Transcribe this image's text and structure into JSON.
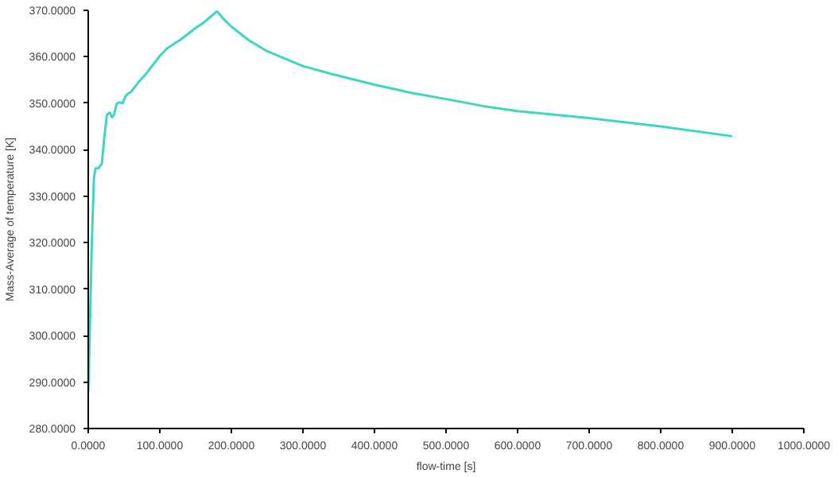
{
  "chart_data": {
    "type": "line",
    "xlabel": "flow-time [s]",
    "ylabel": "Mass-Average of temperature [K]",
    "xlim": [
      0,
      1000
    ],
    "ylim": [
      280,
      370
    ],
    "xticks": [
      {
        "value": 0,
        "label": "0.0000"
      },
      {
        "value": 100,
        "label": "100.0000"
      },
      {
        "value": 200,
        "label": "200.0000"
      },
      {
        "value": 300,
        "label": "300.0000"
      },
      {
        "value": 400,
        "label": "400.0000"
      },
      {
        "value": 500,
        "label": "500.0000"
      },
      {
        "value": 600,
        "label": "600.0000"
      },
      {
        "value": 700,
        "label": "700.0000"
      },
      {
        "value": 800,
        "label": "800.0000"
      },
      {
        "value": 900,
        "label": "900.0000"
      },
      {
        "value": 1000,
        "label": "1000.0000"
      }
    ],
    "yticks": [
      {
        "value": 280,
        "label": "280.0000"
      },
      {
        "value": 290,
        "label": "290.0000"
      },
      {
        "value": 300,
        "label": "300.0000"
      },
      {
        "value": 310,
        "label": "310.0000"
      },
      {
        "value": 320,
        "label": "320.0000"
      },
      {
        "value": 330,
        "label": "330.0000"
      },
      {
        "value": 340,
        "label": "340.0000"
      },
      {
        "value": 350,
        "label": "350.0000"
      },
      {
        "value": 360,
        "label": "360.0000"
      },
      {
        "value": 370,
        "label": "370.0000"
      }
    ],
    "grid": false,
    "marker": "none",
    "line_style": "solid",
    "series": [
      {
        "color": "#3dd6c0",
        "x": [
          0,
          2,
          5,
          8,
          10,
          14,
          19,
          22,
          26,
          30,
          33,
          36,
          40,
          44,
          48,
          52,
          55,
          60,
          64,
          70,
          80,
          90,
          100,
          110,
          120,
          130,
          140,
          150,
          160,
          170,
          180,
          190,
          200,
          225,
          250,
          300,
          340,
          400,
          450,
          500,
          552,
          600,
          700,
          800,
          900
        ],
        "values": [
          288,
          300,
          320,
          334,
          336,
          336,
          337,
          342,
          347.5,
          348,
          347,
          347.5,
          350,
          350.2,
          350,
          351.5,
          352,
          352.5,
          353.3,
          354.5,
          356.2,
          358.2,
          360.2,
          361.8,
          362.8,
          363.8,
          365,
          366.2,
          367.2,
          368.5,
          369.8,
          368,
          366.5,
          363.5,
          361.2,
          358,
          356.3,
          354,
          352.3,
          350.9,
          349.4,
          348.3,
          346.8,
          345,
          342.9
        ]
      }
    ]
  }
}
